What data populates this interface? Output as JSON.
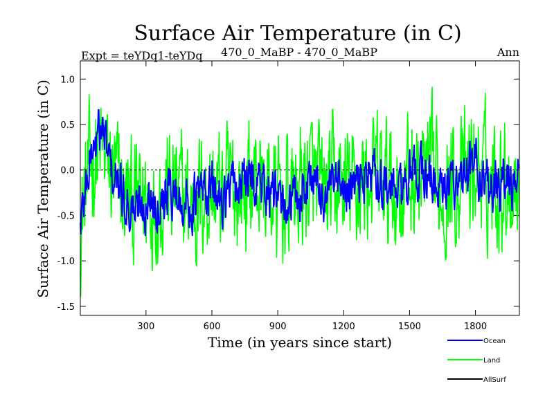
{
  "chart_data": {
    "type": "line",
    "title": "Surface Air Temperature (in C)",
    "subtitle_left": "Expt = teYDq1-teYDq",
    "subtitle_center": "470_0_MaBP - 470_0_MaBP",
    "subtitle_right": "Ann",
    "xlabel": "Time (in years since start)",
    "ylabel": "Surface Air Temperature (in C)",
    "xlim": [
      1,
      2000
    ],
    "ylim": [
      -1.6,
      1.2
    ],
    "x_ticks": [
      300,
      600,
      900,
      1200,
      1500,
      1800
    ],
    "x_tick_labels": [
      "300",
      "600",
      "900",
      "1200",
      "1500",
      "1800"
    ],
    "y_ticks": [
      1.0,
      0.5,
      0.0,
      -0.5,
      -1.0,
      -1.5
    ],
    "y_tick_labels": [
      "1.0",
      "0.5",
      "0.0",
      "-0.5",
      "-1.0",
      "-1.5"
    ],
    "reference_line": 0.0,
    "series": [
      {
        "name": "Land",
        "color": "#00ff00",
        "x": [
          1,
          50,
          100,
          150,
          200,
          250,
          300,
          350,
          400,
          450,
          500,
          550,
          600,
          650,
          700,
          750,
          800,
          850,
          900,
          950,
          1000,
          1050,
          1100,
          1150,
          1200,
          1250,
          1300,
          1350,
          1400,
          1450,
          1500,
          1550,
          1600,
          1650,
          1700,
          1750,
          1800,
          1850,
          1900,
          1950,
          2000
        ],
        "values": [
          -0.6,
          0.1,
          0.2,
          -0.1,
          -0.3,
          -0.4,
          -0.3,
          -0.3,
          -0.2,
          -0.3,
          -0.4,
          -0.3,
          -0.2,
          -0.3,
          -0.2,
          -0.2,
          -0.1,
          -0.2,
          -0.4,
          -0.3,
          -0.2,
          -0.1,
          -0.3,
          -0.2,
          -0.2,
          -0.2,
          -0.1,
          -0.1,
          -0.2,
          -0.2,
          -0.1,
          -0.1,
          -0.1,
          -0.2,
          -0.1,
          -0.1,
          0.0,
          -0.1,
          -0.1,
          -0.1,
          -0.1
        ]
      },
      {
        "name": "Ocean",
        "color": "#0000ff",
        "x": [
          1,
          50,
          100,
          150,
          200,
          250,
          300,
          350,
          400,
          450,
          500,
          550,
          600,
          650,
          700,
          750,
          800,
          850,
          900,
          950,
          1000,
          1050,
          1100,
          1150,
          1200,
          1250,
          1300,
          1350,
          1400,
          1450,
          1500,
          1550,
          1600,
          1650,
          1700,
          1750,
          1800,
          1850,
          1900,
          1950,
          2000
        ],
        "values": [
          -0.6,
          0.2,
          0.45,
          -0.1,
          -0.3,
          -0.45,
          -0.35,
          -0.3,
          -0.2,
          -0.3,
          -0.4,
          -0.25,
          -0.2,
          -0.3,
          -0.2,
          -0.15,
          -0.1,
          -0.2,
          -0.4,
          -0.35,
          -0.3,
          -0.05,
          -0.3,
          -0.2,
          -0.25,
          -0.2,
          -0.05,
          -0.05,
          -0.2,
          -0.25,
          -0.1,
          -0.05,
          -0.1,
          -0.3,
          -0.1,
          -0.05,
          0.05,
          -0.1,
          -0.2,
          -0.15,
          -0.1
        ]
      },
      {
        "name": "AllSurf",
        "color": "#000000",
        "x": [],
        "values": []
      }
    ],
    "legend": [
      {
        "name": "Ocean",
        "color": "#0000ff"
      },
      {
        "name": "Land",
        "color": "#00ff00"
      },
      {
        "name": "AllSurf",
        "color": "#000000"
      }
    ]
  }
}
